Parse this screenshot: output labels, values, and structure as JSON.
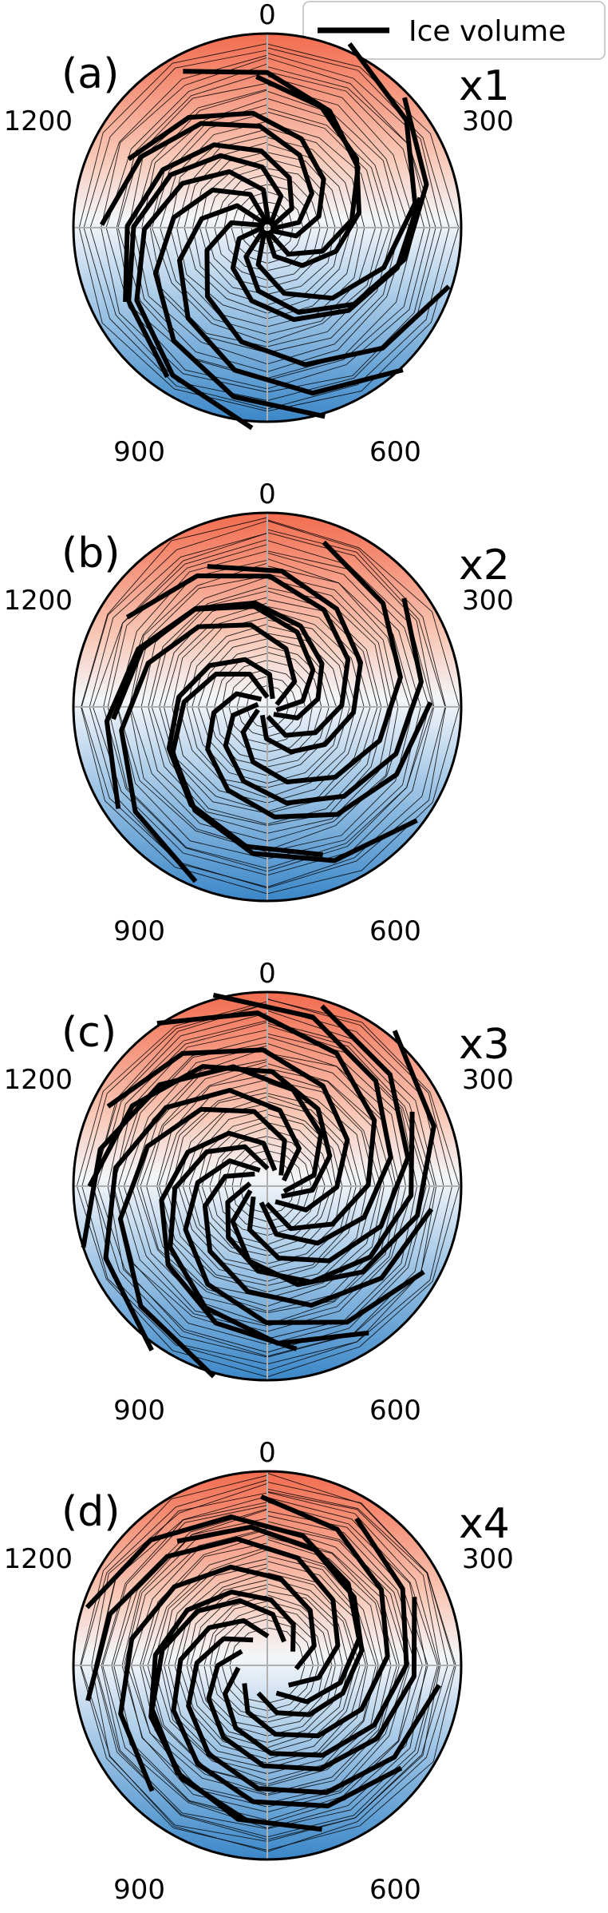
{
  "legend": {
    "label": "Ice volume",
    "position": "top-right"
  },
  "panel_labels": [
    "(a)",
    "(b)",
    "(c)",
    "(d)"
  ],
  "multiplier_labels": [
    "x1",
    "x2",
    "x3",
    "x4"
  ],
  "colors": {
    "warm": "#f26c4f",
    "cold": "#3b87c8",
    "mid": "#f4f6fa",
    "line": "#000000",
    "grid": "#b0b0b0"
  },
  "chart_data": [
    {
      "type": "polar-line",
      "panel": "(a)",
      "multiplier": "x1",
      "angular_period": 1200,
      "theta_ticks": [
        0,
        300,
        600,
        900,
        1200
      ],
      "theta_tick_labels": [
        "0",
        "300",
        "600",
        "900",
        "1200"
      ],
      "spirals": {
        "count": 13,
        "turns": 0.55,
        "inner_radius": 0.02,
        "polygon_step": 100
      },
      "thin_rings": 24,
      "background": {
        "warm_angle": 0,
        "cold_angle": 600
      }
    },
    {
      "type": "polar-line",
      "panel": "(b)",
      "multiplier": "x2",
      "angular_period": 1200,
      "theta_ticks": [
        0,
        300,
        600,
        900,
        1200
      ],
      "theta_tick_labels": [
        "0",
        "300",
        "600",
        "900",
        "1200"
      ],
      "spirals": {
        "count": 10,
        "turns": 0.65,
        "inner_radius": 0.05,
        "polygon_step": 100
      },
      "thin_rings": 26,
      "background": {
        "warm_angle": 0,
        "cold_angle": 600
      }
    },
    {
      "type": "polar-line",
      "panel": "(c)",
      "multiplier": "x3",
      "angular_period": 1200,
      "theta_ticks": [
        0,
        300,
        600,
        900,
        1200
      ],
      "theta_tick_labels": [
        "0",
        "300",
        "600",
        "900",
        "1200"
      ],
      "spirals": {
        "count": 14,
        "turns": 0.6,
        "inner_radius": 0.09,
        "polygon_step": 100
      },
      "thin_rings": 28,
      "background": {
        "warm_angle": 0,
        "cold_angle": 600
      }
    },
    {
      "type": "polar-line",
      "panel": "(d)",
      "multiplier": "x4",
      "angular_period": 1200,
      "theta_ticks": [
        0,
        300,
        600,
        900,
        1200
      ],
      "theta_tick_labels": [
        "0",
        "300",
        "600",
        "900",
        "1200"
      ],
      "spirals": {
        "count": 11,
        "turns": 0.65,
        "inner_radius": 0.15,
        "polygon_step": 100
      },
      "thin_rings": 30,
      "background": {
        "warm_angle": 0,
        "cold_angle": 600
      }
    }
  ]
}
